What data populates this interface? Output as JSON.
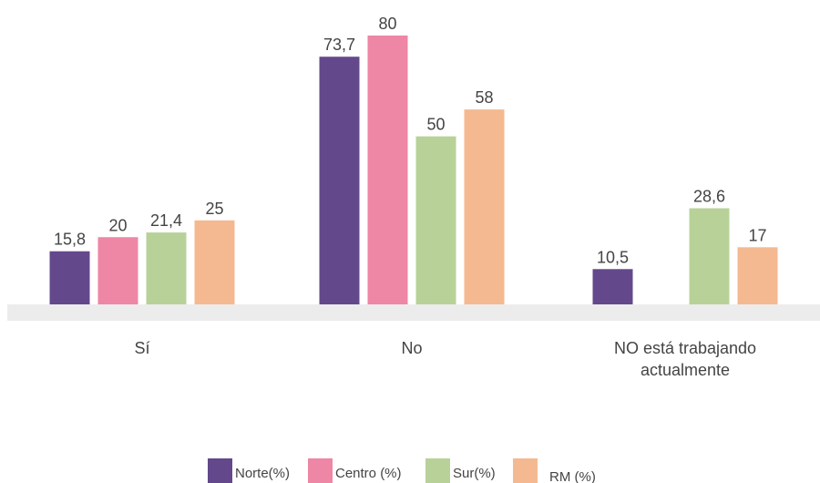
{
  "chart_data": {
    "type": "bar",
    "categories": [
      "Sí",
      "No",
      "NO está trabajando actualmente"
    ],
    "series": [
      {
        "name": "Norte(%)",
        "color": "#64488c",
        "values": [
          15.8,
          73.7,
          10.5
        ],
        "value_labels": [
          "15,8",
          "73,7",
          "10,5"
        ]
      },
      {
        "name": "Centro (%)",
        "color": "#ee86a6",
        "values": [
          20,
          80,
          null
        ],
        "value_labels": [
          "20",
          "80",
          null
        ]
      },
      {
        "name": "Sur(%)",
        "color": "#b8d199",
        "values": [
          21.4,
          50,
          28.6
        ],
        "value_labels": [
          "21,4",
          "50",
          "28,6"
        ]
      },
      {
        "name": "RM (%)",
        "color": "#f4b990",
        "values": [
          25,
          58,
          17
        ],
        "value_labels": [
          "25",
          "58",
          "17"
        ]
      }
    ],
    "ylim": [
      0,
      80
    ]
  }
}
